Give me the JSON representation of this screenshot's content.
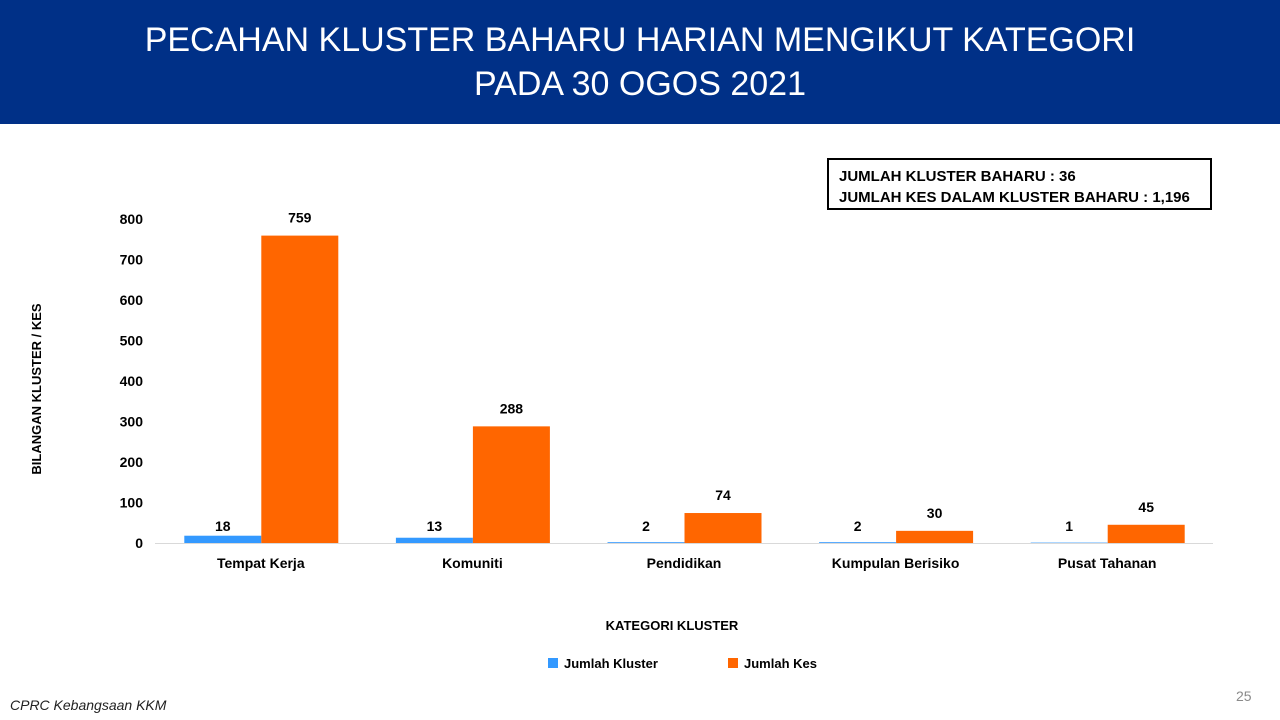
{
  "header": {
    "title_line1": "PECAHAN KLUSTER BAHARU HARIAN MENGIKUT KATEGORI",
    "title_line2": "PADA 30 OGOS 2021"
  },
  "summary": {
    "line1": "JUMLAH KLUSTER BAHARU : 36",
    "line2": "JUMLAH KES DALAM KLUSTER BAHARU : 1,196"
  },
  "chart_data": {
    "type": "bar",
    "title": "PECAHAN KLUSTER BAHARU HARIAN MENGIKUT KATEGORI PADA 30 OGOS 2021",
    "xlabel": "KATEGORI KLUSTER",
    "ylabel": "BILANGAN KLUSTER / KES",
    "categories": [
      "Tempat Kerja",
      "Komuniti",
      "Pendidikan",
      "Kumpulan Berisiko",
      "Pusat Tahanan"
    ],
    "series": [
      {
        "name": "Jumlah Kluster",
        "color": "#3399ff",
        "values": [
          18,
          13,
          2,
          2,
          1
        ]
      },
      {
        "name": "Jumlah Kes",
        "color": "#ff6600",
        "values": [
          759,
          288,
          74,
          30,
          45
        ]
      }
    ],
    "ylim": [
      0,
      800
    ],
    "yticks": [
      0,
      100,
      200,
      300,
      400,
      500,
      600,
      700,
      800
    ],
    "grid": false,
    "legend_position": "bottom",
    "data_labels": true
  },
  "footer": {
    "source": "CPRC Kebangsaan KKM",
    "page_number": "25"
  }
}
